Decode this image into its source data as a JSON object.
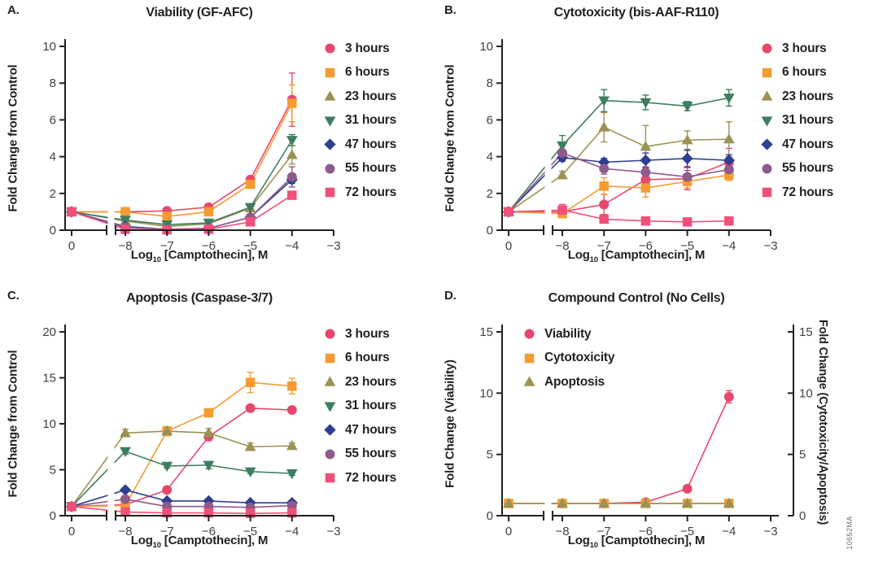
{
  "figure": {
    "watermark": "10652MA",
    "background": "#ffffff",
    "axis_color": "#231f20",
    "tick_text_color": "#414042"
  },
  "xaxis": {
    "label_main": "Log",
    "label_sub": "10",
    "label_rest": " [Camptothecin], M",
    "ticks": [
      "0",
      "−8",
      "−7",
      "−6",
      "−5",
      "−4",
      "−3"
    ]
  },
  "chart_data": [
    {
      "type": "line",
      "panel_label": "A.",
      "title": "Viability (GF-AFC)",
      "ylabel": "Fold Change from Control",
      "xlabel": "Log10 [Camptothecin], M",
      "ylim": [
        0,
        10
      ],
      "yticks": [
        0,
        2,
        4,
        6,
        8,
        10
      ],
      "x": [
        0,
        -8,
        -7,
        -6,
        -5,
        -4
      ],
      "x_axis_break_after_control": true,
      "legend_position": "right",
      "series": [
        {
          "name": "3 hours",
          "marker": "circle",
          "color": "#e8476c",
          "values": [
            1.0,
            1.0,
            1.05,
            1.25,
            2.75,
            7.1
          ],
          "err": [
            0.1,
            0.05,
            0.05,
            0.1,
            0.15,
            1.45
          ]
        },
        {
          "name": "6 hours",
          "marker": "square",
          "color": "#f59b31",
          "values": [
            1.0,
            1.0,
            0.75,
            1.0,
            2.5,
            6.9
          ],
          "err": [
            0.1,
            0.05,
            0.1,
            0.1,
            0.15,
            1.0
          ]
        },
        {
          "name": "23 hours",
          "marker": "triangle-up",
          "color": "#9b9254",
          "values": [
            1.0,
            0.5,
            0.2,
            0.35,
            1.2,
            4.1
          ],
          "err": [
            0.05,
            0.05,
            0.05,
            0.05,
            0.1,
            0.5
          ]
        },
        {
          "name": "31 hours",
          "marker": "triangle-down",
          "color": "#3f7d60",
          "values": [
            1.0,
            0.55,
            0.3,
            0.4,
            1.25,
            4.9
          ],
          "err": [
            0.05,
            0.05,
            0.05,
            0.05,
            0.1,
            0.3
          ]
        },
        {
          "name": "47 hours",
          "marker": "diamond",
          "color": "#2e3e90",
          "values": [
            1.0,
            0.2,
            0.05,
            0.1,
            0.7,
            2.75
          ],
          "err": [
            0.05,
            0.02,
            0.02,
            0.02,
            0.05,
            0.2
          ]
        },
        {
          "name": "55 hours",
          "marker": "circle",
          "color": "#8f5a8c",
          "values": [
            1.0,
            0.15,
            0.05,
            0.1,
            0.7,
            2.9
          ],
          "err": [
            0.05,
            0.02,
            0.02,
            0.02,
            0.05,
            0.55
          ]
        },
        {
          "name": "72 hours",
          "marker": "square",
          "color": "#f14f78",
          "values": [
            1.0,
            0.05,
            0.02,
            0.05,
            0.45,
            1.9
          ],
          "err": [
            0.05,
            0.02,
            0.02,
            0.02,
            0.05,
            0.15
          ]
        }
      ]
    },
    {
      "type": "line",
      "panel_label": "B.",
      "title": "Cytotoxicity (bis-AAF-R110)",
      "ylabel": "Fold Change from Control",
      "xlabel": "Log10 [Camptothecin], M",
      "ylim": [
        0,
        10
      ],
      "yticks": [
        0,
        2,
        4,
        6,
        8,
        10
      ],
      "x": [
        0,
        -8,
        -7,
        -6,
        -5,
        -4
      ],
      "x_axis_break_after_control": true,
      "legend_position": "right",
      "series": [
        {
          "name": "3 hours",
          "marker": "circle",
          "color": "#e8476c",
          "values": [
            1.0,
            1.0,
            1.4,
            2.75,
            2.8,
            3.7
          ],
          "err": [
            0.15,
            0.1,
            0.55,
            0.5,
            0.6,
            0.75
          ]
        },
        {
          "name": "6 hours",
          "marker": "square",
          "color": "#f59b31",
          "values": [
            1.0,
            0.9,
            2.4,
            2.3,
            2.65,
            3.0
          ],
          "err": [
            0.1,
            0.2,
            0.45,
            0.5,
            0.35,
            0.3
          ]
        },
        {
          "name": "23 hours",
          "marker": "triangle-up",
          "color": "#9b9254",
          "values": [
            1.0,
            3.0,
            5.6,
            4.55,
            4.9,
            4.95
          ],
          "err": [
            0.1,
            0.2,
            0.8,
            1.15,
            0.5,
            0.95
          ]
        },
        {
          "name": "31 hours",
          "marker": "triangle-down",
          "color": "#3f7d60",
          "values": [
            1.0,
            4.6,
            7.05,
            6.95,
            6.75,
            7.2
          ],
          "err": [
            0.15,
            0.55,
            0.6,
            0.4,
            0.25,
            0.45
          ]
        },
        {
          "name": "47 hours",
          "marker": "diamond",
          "color": "#2e3e90",
          "values": [
            1.0,
            3.95,
            3.7,
            3.8,
            3.9,
            3.8
          ],
          "err": [
            0.1,
            0.2,
            0.2,
            0.4,
            0.45,
            0.3
          ]
        },
        {
          "name": "55 hours",
          "marker": "circle",
          "color": "#8f5a8c",
          "values": [
            1.0,
            4.2,
            3.35,
            3.15,
            2.9,
            3.3
          ],
          "err": [
            0.1,
            0.2,
            0.3,
            0.3,
            0.35,
            0.3
          ]
        },
        {
          "name": "72 hours",
          "marker": "square",
          "color": "#f14f78",
          "values": [
            1.0,
            1.1,
            0.6,
            0.5,
            0.45,
            0.5
          ],
          "err": [
            0.15,
            0.3,
            0.15,
            0.05,
            0.05,
            0.05
          ]
        }
      ]
    },
    {
      "type": "line",
      "panel_label": "C.",
      "title": "Apoptosis (Caspase-3/7)",
      "ylabel": "Fold Change from Control",
      "xlabel": "Log10 [Camptothecin], M",
      "ylim": [
        0,
        20
      ],
      "yticks": [
        0,
        5,
        10,
        15,
        20
      ],
      "x": [
        0,
        -8,
        -7,
        -6,
        -5,
        -4
      ],
      "x_axis_break_after_control": true,
      "legend_position": "right",
      "series": [
        {
          "name": "3 hours",
          "marker": "circle",
          "color": "#e8476c",
          "values": [
            1.0,
            1.2,
            2.8,
            8.6,
            11.7,
            11.5
          ],
          "err": [
            0.1,
            0.1,
            0.2,
            0.45,
            0.3,
            0.3
          ]
        },
        {
          "name": "6 hours",
          "marker": "square",
          "color": "#f59b31",
          "values": [
            1.0,
            1.1,
            9.2,
            11.2,
            14.5,
            14.1
          ],
          "err": [
            0.1,
            0.1,
            0.5,
            0.3,
            1.1,
            0.85
          ]
        },
        {
          "name": "23 hours",
          "marker": "triangle-up",
          "color": "#9b9254",
          "values": [
            1.0,
            9.0,
            9.2,
            9.0,
            7.5,
            7.6
          ],
          "err": [
            0.1,
            0.4,
            0.45,
            0.5,
            0.4,
            0.3
          ]
        },
        {
          "name": "31 hours",
          "marker": "triangle-down",
          "color": "#3f7d60",
          "values": [
            1.0,
            7.0,
            5.4,
            5.5,
            4.8,
            4.6
          ],
          "err": [
            0.1,
            0.3,
            0.2,
            0.4,
            0.2,
            0.2
          ]
        },
        {
          "name": "47 hours",
          "marker": "diamond",
          "color": "#2e3e90",
          "values": [
            1.0,
            2.8,
            1.6,
            1.6,
            1.4,
            1.4
          ],
          "err": [
            0.05,
            0.15,
            0.1,
            0.1,
            0.1,
            0.1
          ]
        },
        {
          "name": "55 hours",
          "marker": "circle",
          "color": "#8f5a8c",
          "values": [
            1.0,
            1.8,
            1.0,
            1.0,
            0.9,
            1.1
          ],
          "err": [
            0.05,
            0.1,
            0.05,
            0.05,
            0.05,
            0.05
          ]
        },
        {
          "name": "72 hours",
          "marker": "square",
          "color": "#f14f78",
          "values": [
            1.0,
            0.4,
            0.3,
            0.3,
            0.25,
            0.3
          ],
          "err": [
            0.05,
            0.05,
            0.05,
            0.05,
            0.05,
            0.05
          ]
        }
      ]
    },
    {
      "type": "line",
      "panel_label": "D.",
      "title": "Compound Control (No Cells)",
      "ylabel": "Fold Change (Viability)",
      "ylabel_right": "Fold Change (Cytotoxicity/Apoptosis)",
      "xlabel": "Log10 [Camptothecin], M",
      "ylim": [
        0,
        15
      ],
      "yticks": [
        0,
        5,
        10,
        15
      ],
      "yticks_right": [
        0,
        5,
        10,
        15
      ],
      "x": [
        0,
        -8,
        -7,
        -6,
        -5,
        -4
      ],
      "x_axis_break_after_control": true,
      "legend_position": "inside",
      "series": [
        {
          "name": "Viability",
          "marker": "circle",
          "color": "#e8476c",
          "values": [
            1.0,
            1.0,
            1.0,
            1.1,
            2.2,
            9.7
          ],
          "err": [
            0.05,
            0.05,
            0.05,
            0.05,
            0.1,
            0.5
          ]
        },
        {
          "name": "Cytotoxicity",
          "marker": "square",
          "color": "#f59b31",
          "values": [
            1.0,
            1.0,
            1.0,
            1.0,
            1.0,
            1.0
          ],
          "err": [
            0.05,
            0.05,
            0.05,
            0.05,
            0.05,
            0.05
          ]
        },
        {
          "name": "Apoptosis",
          "marker": "triangle-up",
          "color": "#9b9254",
          "values": [
            1.0,
            1.0,
            1.0,
            1.0,
            1.0,
            1.0
          ],
          "err": [
            0.05,
            0.05,
            0.05,
            0.05,
            0.05,
            0.05
          ]
        }
      ]
    }
  ]
}
